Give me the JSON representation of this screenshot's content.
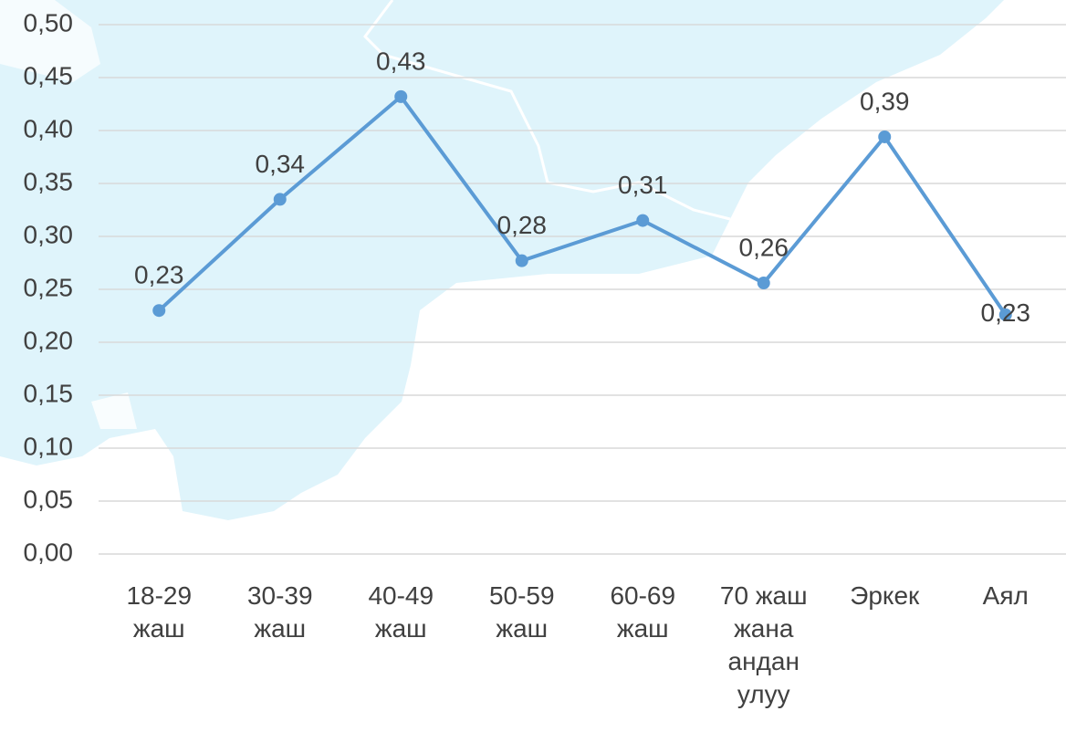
{
  "chart_data": {
    "type": "line",
    "categories": [
      "18-29 жаш",
      "30-39 жаш",
      "40-49 жаш",
      "50-59 жаш",
      "60-69 жаш",
      "70 жаш жана андан улуу",
      "Эркек",
      "Аял"
    ],
    "series": [
      {
        "color": "#5b9bd5",
        "values": [
          0.23,
          0.335,
          0.432,
          0.277,
          0.315,
          0.256,
          0.394,
          0.226
        ],
        "value_labels": [
          "0,23",
          "0,34",
          "0,43",
          "0,28",
          "0,31",
          "0,26",
          "0,39",
          "0,23"
        ]
      }
    ],
    "ylim": [
      0,
      0.5
    ],
    "yticks": [
      {
        "value": 0,
        "label": "0,00"
      },
      {
        "value": 0.05,
        "label": "0,05"
      },
      {
        "value": 0.1,
        "label": "0,10"
      },
      {
        "value": 0.15,
        "label": "0,15"
      },
      {
        "value": 0.2,
        "label": "0,20"
      },
      {
        "value": 0.25,
        "label": "0,25"
      },
      {
        "value": 0.3,
        "label": "0,30"
      },
      {
        "value": 0.35,
        "label": "0,35"
      },
      {
        "value": 0.4,
        "label": "0,40"
      },
      {
        "value": 0.45,
        "label": "0,45"
      },
      {
        "value": 0.5,
        "label": "0,50"
      }
    ],
    "grid": true
  }
}
